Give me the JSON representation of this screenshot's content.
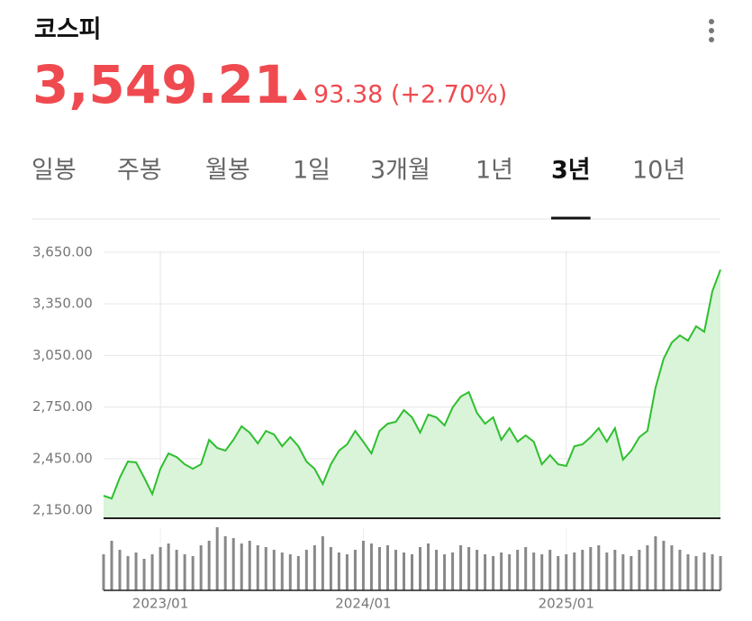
{
  "header": {
    "title": "코스피",
    "price": "3,549.21",
    "change": "93.38 (+2.70%)"
  },
  "tabs": [
    "일봉",
    "주봉",
    "월봉",
    "1일",
    "3개월",
    "1년",
    "3년",
    "10년"
  ],
  "active_tab": 6,
  "chart_data": {
    "type": "line",
    "color": "#2fbf2f",
    "area_color": "#d9f4d9",
    "grid": true,
    "categories": [
      null,
      null,
      null,
      null,
      null,
      null,
      null,
      "2023/01",
      null,
      null,
      null,
      null,
      null,
      null,
      null,
      null,
      null,
      null,
      null,
      null,
      null,
      null,
      null,
      null,
      null,
      null,
      null,
      null,
      null,
      null,
      null,
      null,
      "2024/01",
      null,
      null,
      null,
      null,
      null,
      null,
      null,
      null,
      null,
      null,
      null,
      null,
      null,
      null,
      null,
      null,
      null,
      null,
      null,
      null,
      null,
      null,
      null,
      null,
      "2025/01",
      null,
      null,
      null,
      null,
      null,
      null,
      null,
      null,
      null,
      null,
      null,
      null,
      null,
      null,
      null,
      null,
      null,
      null,
      null
    ],
    "values": [
      2234,
      2218,
      2339,
      2433,
      2428,
      2339,
      2244,
      2391,
      2480,
      2459,
      2417,
      2391,
      2417,
      2559,
      2512,
      2496,
      2559,
      2638,
      2601,
      2538,
      2611,
      2590,
      2522,
      2575,
      2522,
      2433,
      2391,
      2302,
      2417,
      2496,
      2533,
      2611,
      2548,
      2480,
      2611,
      2653,
      2664,
      2732,
      2690,
      2601,
      2706,
      2690,
      2643,
      2748,
      2811,
      2837,
      2716,
      2653,
      2690,
      2559,
      2627,
      2548,
      2585,
      2548,
      2417,
      2470,
      2417,
      2407,
      2522,
      2533,
      2575,
      2627,
      2548,
      2627,
      2444,
      2496,
      2575,
      2611,
      2863,
      3031,
      3125,
      3167,
      3136,
      3220,
      3188,
      3424,
      3549
    ],
    "volume": [
      40,
      55,
      45,
      38,
      42,
      35,
      40,
      48,
      52,
      45,
      40,
      38,
      50,
      55,
      70,
      60,
      58,
      52,
      55,
      50,
      48,
      45,
      42,
      40,
      38,
      45,
      50,
      60,
      48,
      42,
      40,
      45,
      55,
      52,
      48,
      50,
      45,
      42,
      40,
      48,
      52,
      45,
      40,
      42,
      50,
      48,
      45,
      40,
      38,
      42,
      40,
      45,
      48,
      42,
      40,
      45,
      38,
      40,
      42,
      45,
      48,
      50,
      42,
      45,
      40,
      38,
      45,
      50,
      60,
      55,
      50,
      45,
      40,
      38,
      42,
      40,
      38
    ],
    "volume_color": "#888888",
    "ylim": [
      2103,
      3765
    ],
    "yticks": [
      {
        "value": 2150,
        "label": "2,150.00"
      },
      {
        "value": 2450,
        "label": "2,450.00"
      },
      {
        "value": 2750,
        "label": "2,750.00"
      },
      {
        "value": 3050,
        "label": "3,050.00"
      },
      {
        "value": 3350,
        "label": "3,350.00"
      },
      {
        "value": 3650,
        "label": "3,650.00"
      }
    ]
  }
}
